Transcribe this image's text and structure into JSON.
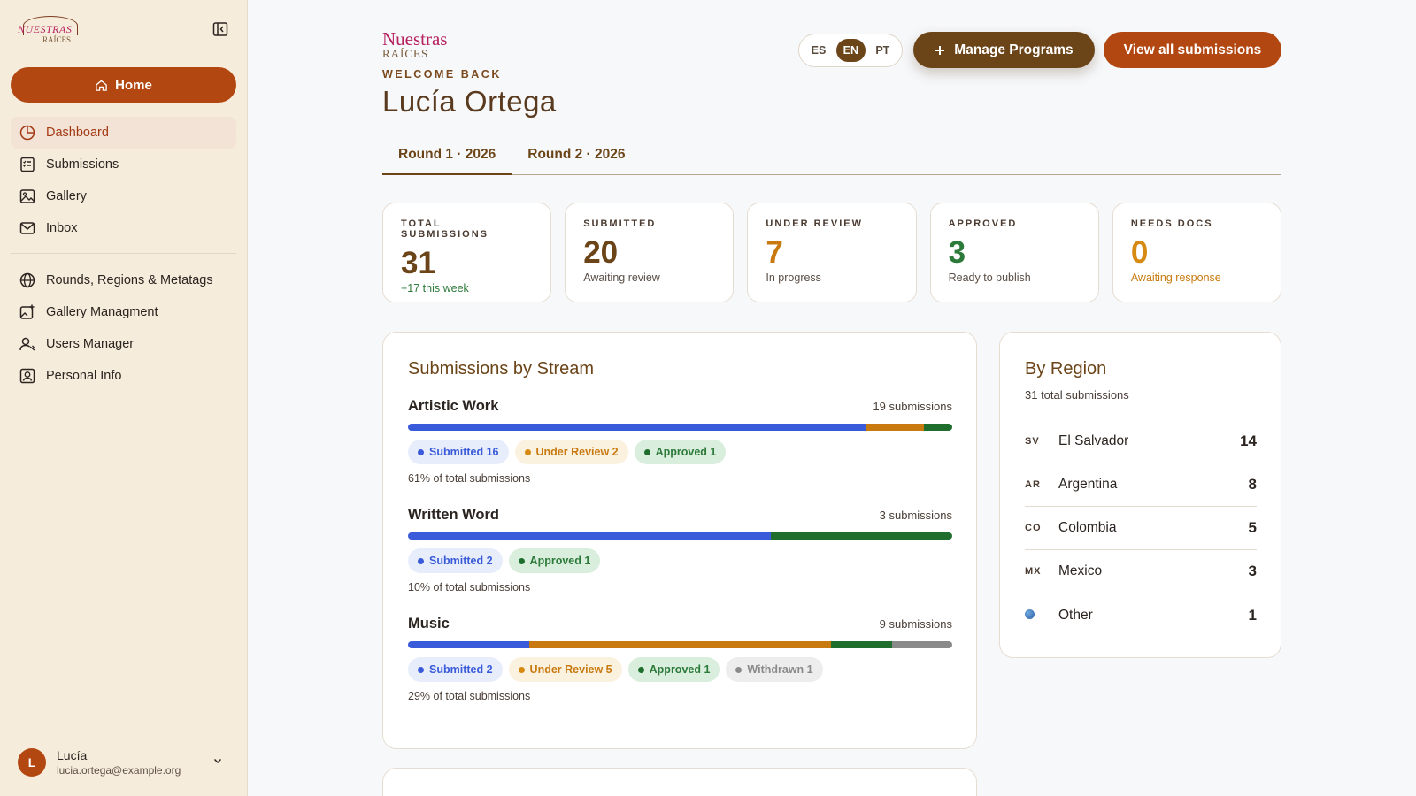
{
  "sidebar": {
    "logo_line1": "NUESTRAS",
    "logo_line2": "RAÍCES",
    "home_label": "Home",
    "nav_primary": [
      {
        "label": "Dashboard",
        "icon": "chart-pie-icon",
        "active": true
      },
      {
        "label": "Submissions",
        "icon": "list-check-icon"
      },
      {
        "label": "Gallery",
        "icon": "image-icon"
      },
      {
        "label": "Inbox",
        "icon": "mail-icon"
      }
    ],
    "nav_admin": [
      {
        "label": "Rounds, Regions & Metatags",
        "icon": "globe-icon"
      },
      {
        "label": "Gallery Managment",
        "icon": "image-edit-icon"
      },
      {
        "label": "Users Manager",
        "icon": "users-icon"
      },
      {
        "label": "Personal Info",
        "icon": "id-card-icon"
      }
    ],
    "user": {
      "initial": "L",
      "name": "Lucía",
      "email": "lucia.ortega@example.org"
    }
  },
  "header": {
    "brand_line1": "Nuestras",
    "brand_line2": "RAÍCES",
    "welcome": "WELCOME BACK",
    "user_name": "Lucía Ortega",
    "languages": [
      "ES",
      "EN",
      "PT"
    ],
    "active_language": "EN",
    "manage_programs": "Manage Programs",
    "view_all": "View all submissions"
  },
  "tabs": [
    "Round 1 · 2026",
    "Round 2 · 2026"
  ],
  "stats": [
    {
      "label": "TOTAL SUBMISSIONS",
      "value": "31",
      "sub": "+17 this week",
      "color": "#6b4418",
      "sub_color": "#2c7a3a"
    },
    {
      "label": "SUBMITTED",
      "value": "20",
      "sub": "Awaiting review",
      "color": "#6b4418",
      "sub_color": "#5a4e46"
    },
    {
      "label": "UNDER REVIEW",
      "value": "7",
      "sub": "In progress",
      "color": "#c87a10",
      "sub_color": "#5a4e46"
    },
    {
      "label": "APPROVED",
      "value": "3",
      "sub": "Ready to publish",
      "color": "#2c7a3a",
      "sub_color": "#5a4e46"
    },
    {
      "label": "NEEDS DOCS",
      "value": "0",
      "sub": "Awaiting response",
      "color": "#d68a12",
      "sub_color": "#c87a10"
    }
  ],
  "streams_card": {
    "title": "Submissions by Stream",
    "streams": [
      {
        "name": "Artistic Work",
        "count": "19 submissions",
        "pct": "61% of total submissions",
        "segments": [
          {
            "status": "submitted",
            "value": 16
          },
          {
            "status": "review",
            "value": 2
          },
          {
            "status": "approved",
            "value": 1
          }
        ],
        "pills": [
          {
            "kind": "sub",
            "label": "Submitted 16"
          },
          {
            "kind": "rev",
            "label": "Under Review 2"
          },
          {
            "kind": "app",
            "label": "Approved 1"
          }
        ]
      },
      {
        "name": "Written Word",
        "count": "3 submissions",
        "pct": "10% of total submissions",
        "segments": [
          {
            "status": "submitted",
            "value": 2
          },
          {
            "status": "approved",
            "value": 1
          }
        ],
        "pills": [
          {
            "kind": "sub",
            "label": "Submitted 2"
          },
          {
            "kind": "app",
            "label": "Approved 1"
          }
        ]
      },
      {
        "name": "Music",
        "count": "9 submissions",
        "pct": "29% of total submissions",
        "segments": [
          {
            "status": "submitted",
            "value": 2
          },
          {
            "status": "review",
            "value": 5
          },
          {
            "status": "approved",
            "value": 1
          },
          {
            "status": "withdrawn",
            "value": 1
          }
        ],
        "pills": [
          {
            "kind": "sub",
            "label": "Submitted 2"
          },
          {
            "kind": "rev",
            "label": "Under Review 5"
          },
          {
            "kind": "app",
            "label": "Approved 1"
          },
          {
            "kind": "wd",
            "label": "Withdrawn 1"
          }
        ]
      }
    ]
  },
  "status_colors": {
    "submitted": "#3a5bd9",
    "review": "#c87a10",
    "approved": "#1f6e2e",
    "withdrawn": "#8a8a8a"
  },
  "region_card": {
    "title": "By Region",
    "total": "31 total submissions",
    "regions": [
      {
        "code": "SV",
        "name": "El Salvador",
        "value": "14"
      },
      {
        "code": "AR",
        "name": "Argentina",
        "value": "8"
      },
      {
        "code": "CO",
        "name": "Colombia",
        "value": "5"
      },
      {
        "code": "MX",
        "name": "Mexico",
        "value": "3"
      },
      {
        "code": "",
        "name": "Other",
        "value": "1"
      }
    ]
  }
}
